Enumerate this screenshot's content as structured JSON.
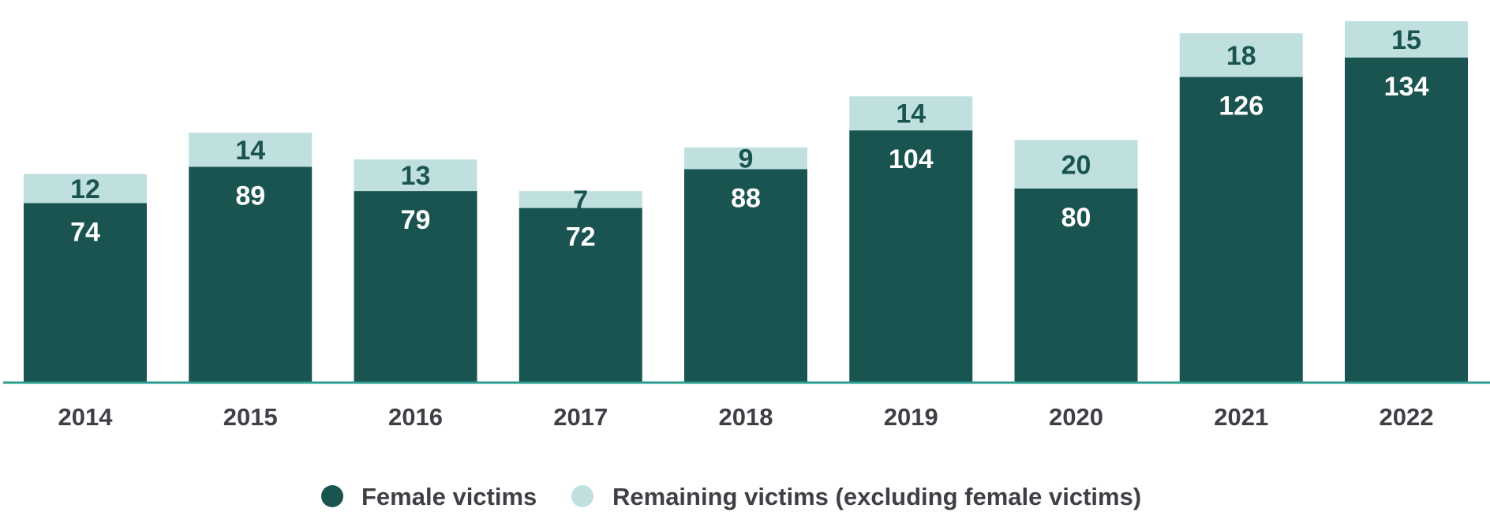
{
  "chart_data": {
    "type": "bar",
    "stacked": true,
    "categories": [
      "2014",
      "2015",
      "2016",
      "2017",
      "2018",
      "2019",
      "2020",
      "2021",
      "2022"
    ],
    "series": [
      {
        "name": "Female victims",
        "color": "#1a5450",
        "label_color": "#ffffff",
        "values": [
          74,
          89,
          79,
          72,
          88,
          104,
          80,
          126,
          134
        ]
      },
      {
        "name": "Remaining victims (excluding female victims)",
        "color": "#bfe0df",
        "label_color": "#1a5450",
        "values": [
          12,
          14,
          13,
          7,
          9,
          14,
          20,
          18,
          15
        ]
      }
    ],
    "title": "",
    "xlabel": "",
    "ylabel": "",
    "ylim": [
      0,
      150
    ],
    "grid": false,
    "legend_position": "bottom-center",
    "baseline_color": "#2a9d8f"
  }
}
